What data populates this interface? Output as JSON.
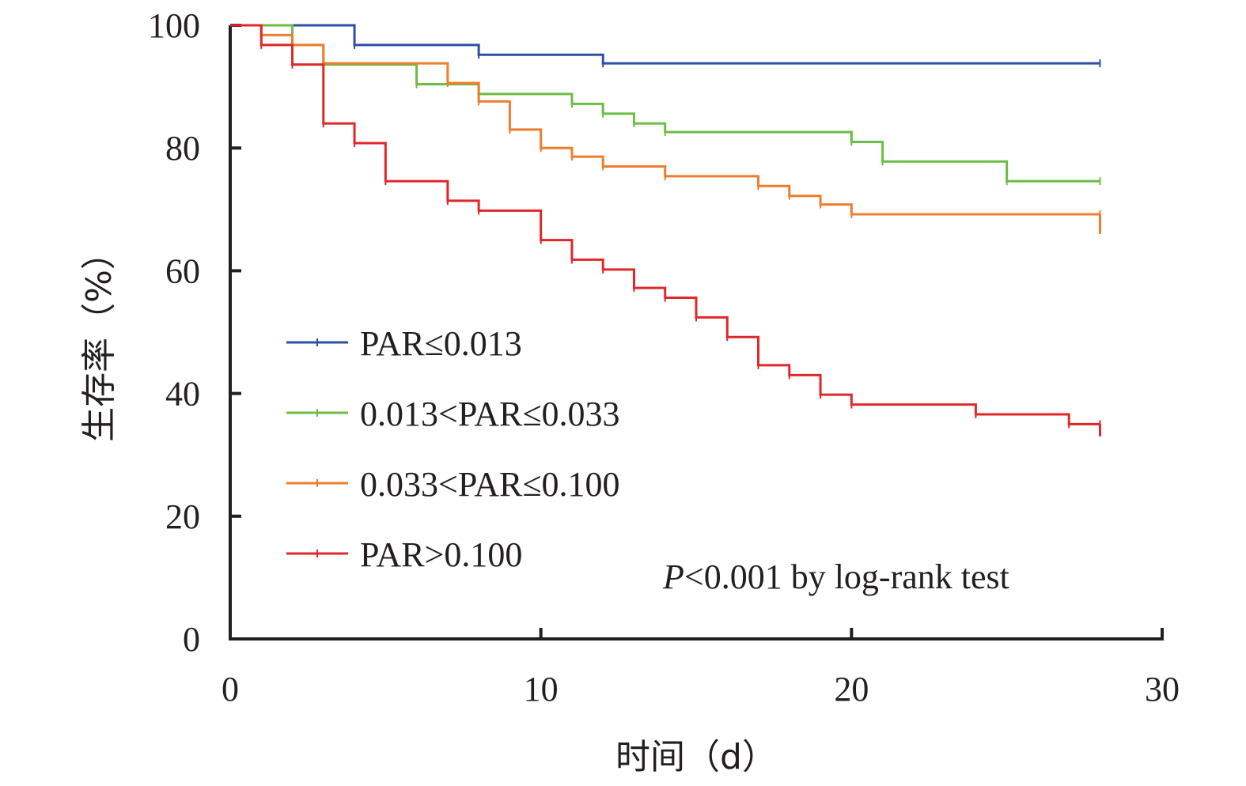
{
  "chart_data": {
    "type": "line",
    "title": "",
    "xlabel": "时间（d）",
    "ylabel": "生存率（%）",
    "xlim": [
      0,
      30
    ],
    "ylim": [
      0,
      100
    ],
    "x_ticks": [
      0,
      10,
      20,
      30
    ],
    "y_ticks": [
      0,
      20,
      40,
      60,
      80,
      100
    ],
    "grid": false,
    "legend_position": "left",
    "annotation": {
      "p_symbol": "P",
      "text": "<0.001 by log-rank test"
    },
    "series": [
      {
        "name": "PAR≤0.013",
        "color": "#2e4fa3",
        "steps": [
          [
            0,
            100
          ],
          [
            4,
            96.8
          ],
          [
            8,
            95.2
          ],
          [
            12,
            93.8
          ],
          [
            28,
            93.8
          ]
        ]
      },
      {
        "name": "0.013<PAR≤0.033",
        "color": "#6bbd45",
        "steps": [
          [
            0,
            100
          ],
          [
            2,
            96.8
          ],
          [
            3,
            93.6
          ],
          [
            6,
            90.4
          ],
          [
            8,
            88.8
          ],
          [
            11,
            87.2
          ],
          [
            12,
            85.6
          ],
          [
            13,
            84.0
          ],
          [
            14,
            82.6
          ],
          [
            20,
            81.0
          ],
          [
            21,
            77.8
          ],
          [
            25,
            74.6
          ],
          [
            28,
            74.6
          ]
        ]
      },
      {
        "name": "0.033<PAR≤0.100",
        "color": "#ee7d2d",
        "steps": [
          [
            0,
            100
          ],
          [
            1,
            98.4
          ],
          [
            2,
            96.8
          ],
          [
            3,
            93.8
          ],
          [
            7,
            90.6
          ],
          [
            8,
            87.6
          ],
          [
            9,
            83.0
          ],
          [
            10,
            80.0
          ],
          [
            11,
            78.6
          ],
          [
            12,
            77.0
          ],
          [
            14,
            75.4
          ],
          [
            17,
            73.8
          ],
          [
            18,
            72.2
          ],
          [
            19,
            70.8
          ],
          [
            20,
            69.2
          ],
          [
            28,
            69.2
          ]
        ],
        "end_drop": 66.0
      },
      {
        "name": "PAR>0.100",
        "color": "#e0272a",
        "steps": [
          [
            0,
            100
          ],
          [
            1,
            96.8
          ],
          [
            2,
            93.6
          ],
          [
            3,
            84.0
          ],
          [
            4,
            80.8
          ],
          [
            5,
            74.6
          ],
          [
            7,
            71.4
          ],
          [
            8,
            69.8
          ],
          [
            10,
            65.0
          ],
          [
            11,
            61.8
          ],
          [
            12,
            60.2
          ],
          [
            13,
            57.2
          ],
          [
            14,
            55.6
          ],
          [
            15,
            52.4
          ],
          [
            16,
            49.2
          ],
          [
            17,
            44.6
          ],
          [
            18,
            43.0
          ],
          [
            19,
            39.8
          ],
          [
            20,
            38.2
          ],
          [
            24,
            36.6
          ],
          [
            27,
            35.0
          ],
          [
            28,
            35.0
          ]
        ],
        "end_drop": 33.0
      }
    ]
  }
}
